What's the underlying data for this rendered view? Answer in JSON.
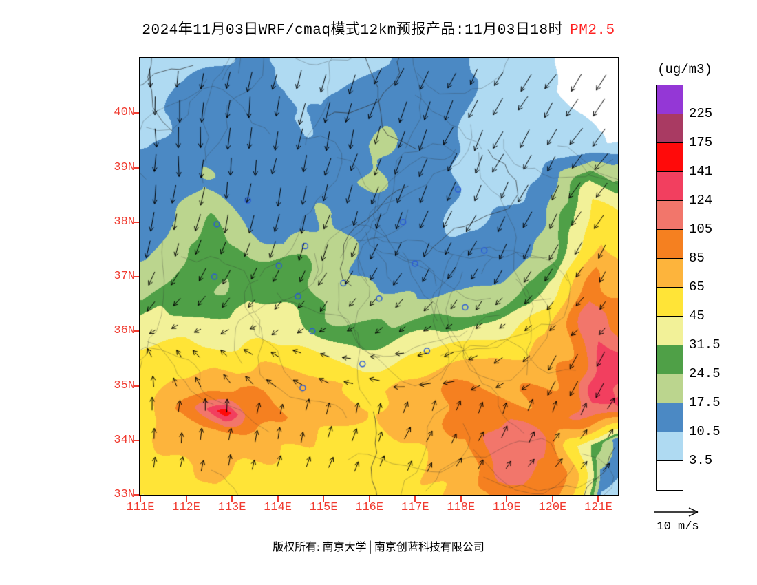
{
  "title": {
    "main": "2024年11月03日WRF/cmaq模式12km预报产品:11月03日18时",
    "highlight": "PM2.5",
    "highlight_color": "#ff2020"
  },
  "colorbar": {
    "units_label": "(ug/m3)",
    "tick_labels": [
      "225",
      "175",
      "141",
      "124",
      "105",
      "85",
      "65",
      "45",
      "31.5",
      "24.5",
      "17.5",
      "10.5",
      "3.5"
    ],
    "colors_top_to_bottom": [
      "#9437d6",
      "#a93a62",
      "#ff0a0a",
      "#f23f5f",
      "#f2766b",
      "#f58020",
      "#fdb43c",
      "#ffe437",
      "#f2f198",
      "#4fa047",
      "#bbd58e",
      "#4b89c4",
      "#afdaf2",
      "#ffffff"
    ]
  },
  "axes": {
    "lat_ticks": [
      "40N",
      "39N",
      "38N",
      "37N",
      "36N",
      "35N",
      "34N",
      "33N"
    ],
    "lon_ticks": [
      "111E",
      "112E",
      "113E",
      "114E",
      "115E",
      "116E",
      "117E",
      "118E",
      "119E",
      "120E",
      "121E"
    ],
    "label_color": "#f03b30"
  },
  "wind_legend": {
    "label": "10 m/s",
    "speed_mps": 10
  },
  "footer": {
    "text": "版权所有: 南京大学│南京创蓝科技有限公司"
  },
  "chart_data": {
    "type": "heatmap",
    "title": "2024年11月03日WRF/cmaq模式12km预报产品:11月03日18时 PM2.5",
    "variable": "PM2.5",
    "units": "ug/m3",
    "lon_range": [
      111.0,
      121.43
    ],
    "lat_range": [
      33.0,
      41.0
    ],
    "legend_position": "right",
    "contour_levels": [
      3.5,
      10.5,
      17.5,
      24.5,
      31.5,
      45,
      65,
      85,
      105,
      124,
      141,
      175,
      225
    ],
    "band_colors_low_to_high": [
      "#ffffff",
      "#afdaf2",
      "#4b89c4",
      "#bbd58e",
      "#4fa047",
      "#f2f198",
      "#ffe437",
      "#fdb43c",
      "#f58020",
      "#f2766b",
      "#f23f5f",
      "#ff0a0a",
      "#a93a62",
      "#9437d6"
    ],
    "grid": {
      "lon_start": 111.0,
      "lon_step": 0.5,
      "lat_start": 41.0,
      "lat_step": -0.5,
      "values_by_lat_row": [
        [
          7,
          8,
          8,
          9,
          10,
          12,
          10,
          9,
          8,
          8,
          9,
          11,
          13,
          14,
          10,
          8,
          6,
          5,
          4,
          3,
          2,
          2
        ],
        [
          8,
          9,
          10,
          12,
          14,
          15,
          12,
          10,
          9,
          10,
          12,
          14,
          16,
          15,
          12,
          9,
          7,
          5,
          4,
          3,
          3,
          2
        ],
        [
          9,
          10,
          12,
          14,
          15,
          13,
          11,
          10,
          10,
          12,
          14,
          16,
          18,
          16,
          12,
          9,
          7,
          6,
          5,
          4,
          3,
          3
        ],
        [
          10,
          12,
          13,
          15,
          16,
          14,
          12,
          11,
          12,
          14,
          16,
          18,
          16,
          14,
          11,
          9,
          8,
          7,
          6,
          5,
          4,
          3
        ],
        [
          11,
          13,
          14,
          16,
          15,
          13,
          12,
          13,
          14,
          16,
          18,
          16,
          14,
          12,
          10,
          9,
          8,
          8,
          12,
          20,
          26,
          18
        ],
        [
          12,
          14,
          16,
          18,
          16,
          14,
          13,
          14,
          16,
          18,
          17,
          15,
          13,
          12,
          10,
          9,
          9,
          10,
          14,
          24,
          40,
          30
        ],
        [
          14,
          16,
          20,
          24,
          20,
          16,
          14,
          16,
          18,
          17,
          15,
          13,
          12,
          11,
          10,
          10,
          11,
          13,
          18,
          30,
          55,
          45
        ],
        [
          16,
          20,
          26,
          30,
          26,
          21,
          18,
          22,
          20,
          18,
          16,
          14,
          12,
          11,
          11,
          12,
          14,
          17,
          24,
          40,
          70,
          60
        ],
        [
          20,
          24,
          30,
          28,
          24,
          28,
          30,
          27,
          20,
          18,
          16,
          14,
          13,
          13,
          14,
          16,
          18,
          22,
          30,
          55,
          85,
          75
        ],
        [
          26,
          30,
          30,
          28,
          26,
          30,
          30,
          28,
          26,
          22,
          20,
          18,
          17,
          18,
          20,
          24,
          28,
          31,
          40,
          70,
          105,
          95
        ],
        [
          34,
          38,
          42,
          40,
          36,
          40,
          38,
          34,
          30,
          28,
          26,
          25,
          26,
          28,
          32,
          38,
          44,
          50,
          60,
          85,
          120,
          110
        ],
        [
          45,
          50,
          55,
          60,
          55,
          58,
          52,
          48,
          44,
          42,
          40,
          42,
          46,
          52,
          58,
          64,
          70,
          75,
          80,
          95,
          132,
          120
        ],
        [
          55,
          65,
          75,
          85,
          80,
          88,
          78,
          70,
          64,
          62,
          60,
          64,
          70,
          76,
          82,
          86,
          88,
          90,
          92,
          100,
          145,
          125
        ],
        [
          60,
          72,
          90,
          120,
          150,
          100,
          85,
          78,
          72,
          70,
          68,
          72,
          78,
          84,
          88,
          90,
          92,
          95,
          100,
          105,
          120,
          115
        ],
        [
          55,
          62,
          70,
          80,
          75,
          70,
          66,
          62,
          60,
          58,
          58,
          62,
          68,
          74,
          80,
          112,
          135,
          126,
          108,
          60,
          30,
          15
        ],
        [
          50,
          56,
          62,
          68,
          64,
          60,
          58,
          56,
          55,
          54,
          55,
          58,
          62,
          68,
          75,
          90,
          112,
          118,
          100,
          70,
          16,
          10
        ],
        [
          48,
          52,
          58,
          62,
          60,
          56,
          54,
          53,
          52,
          52,
          53,
          56,
          60,
          64,
          70,
          80,
          92,
          98,
          90,
          55,
          10,
          8
        ]
      ]
    },
    "wind": {
      "reference_mps": 10,
      "rows": [
        {
          "fy": 0.03,
          "aw": 268,
          "ae": 231,
          "len": 26
        },
        {
          "fy": 0.095,
          "aw": 270,
          "ae": 232,
          "len": 28
        },
        {
          "fy": 0.16,
          "aw": 272,
          "ae": 233,
          "len": 28
        },
        {
          "fy": 0.225,
          "aw": 270,
          "ae": 235,
          "len": 27
        },
        {
          "fy": 0.29,
          "aw": 266,
          "ae": 237,
          "len": 26
        },
        {
          "fy": 0.355,
          "aw": 260,
          "ae": 239,
          "len": 25
        },
        {
          "fy": 0.42,
          "aw": 252,
          "ae": 240,
          "len": 23
        },
        {
          "fy": 0.485,
          "aw": 244,
          "ae": 237,
          "len": 20
        },
        {
          "fy": 0.55,
          "aw": 233,
          "ae": 231,
          "len": 16
        },
        {
          "fy": 0.615,
          "aw": 208,
          "ae": 224,
          "len": 12
        },
        {
          "fy": 0.68,
          "aw": 112,
          "ae": 248,
          "len": 13
        },
        {
          "fy": 0.745,
          "aw": 96,
          "ae": 244,
          "len": 15
        },
        {
          "fy": 0.81,
          "aw": 88,
          "ae": 62,
          "len": 17
        },
        {
          "fy": 0.875,
          "aw": 84,
          "ae": 55,
          "len": 17
        },
        {
          "fy": 0.94,
          "aw": 80,
          "ae": 50,
          "len": 15
        }
      ]
    },
    "city_markers_frac": [
      [
        0.16,
        0.38
      ],
      [
        0.225,
        0.325
      ],
      [
        0.155,
        0.5
      ],
      [
        0.29,
        0.475
      ],
      [
        0.345,
        0.43
      ],
      [
        0.33,
        0.545
      ],
      [
        0.425,
        0.515
      ],
      [
        0.36,
        0.625
      ],
      [
        0.5,
        0.55
      ],
      [
        0.575,
        0.47
      ],
      [
        0.55,
        0.375
      ],
      [
        0.665,
        0.3
      ],
      [
        0.72,
        0.44
      ],
      [
        0.6,
        0.67
      ],
      [
        0.465,
        0.7
      ],
      [
        0.34,
        0.755
      ],
      [
        0.68,
        0.57
      ]
    ]
  }
}
